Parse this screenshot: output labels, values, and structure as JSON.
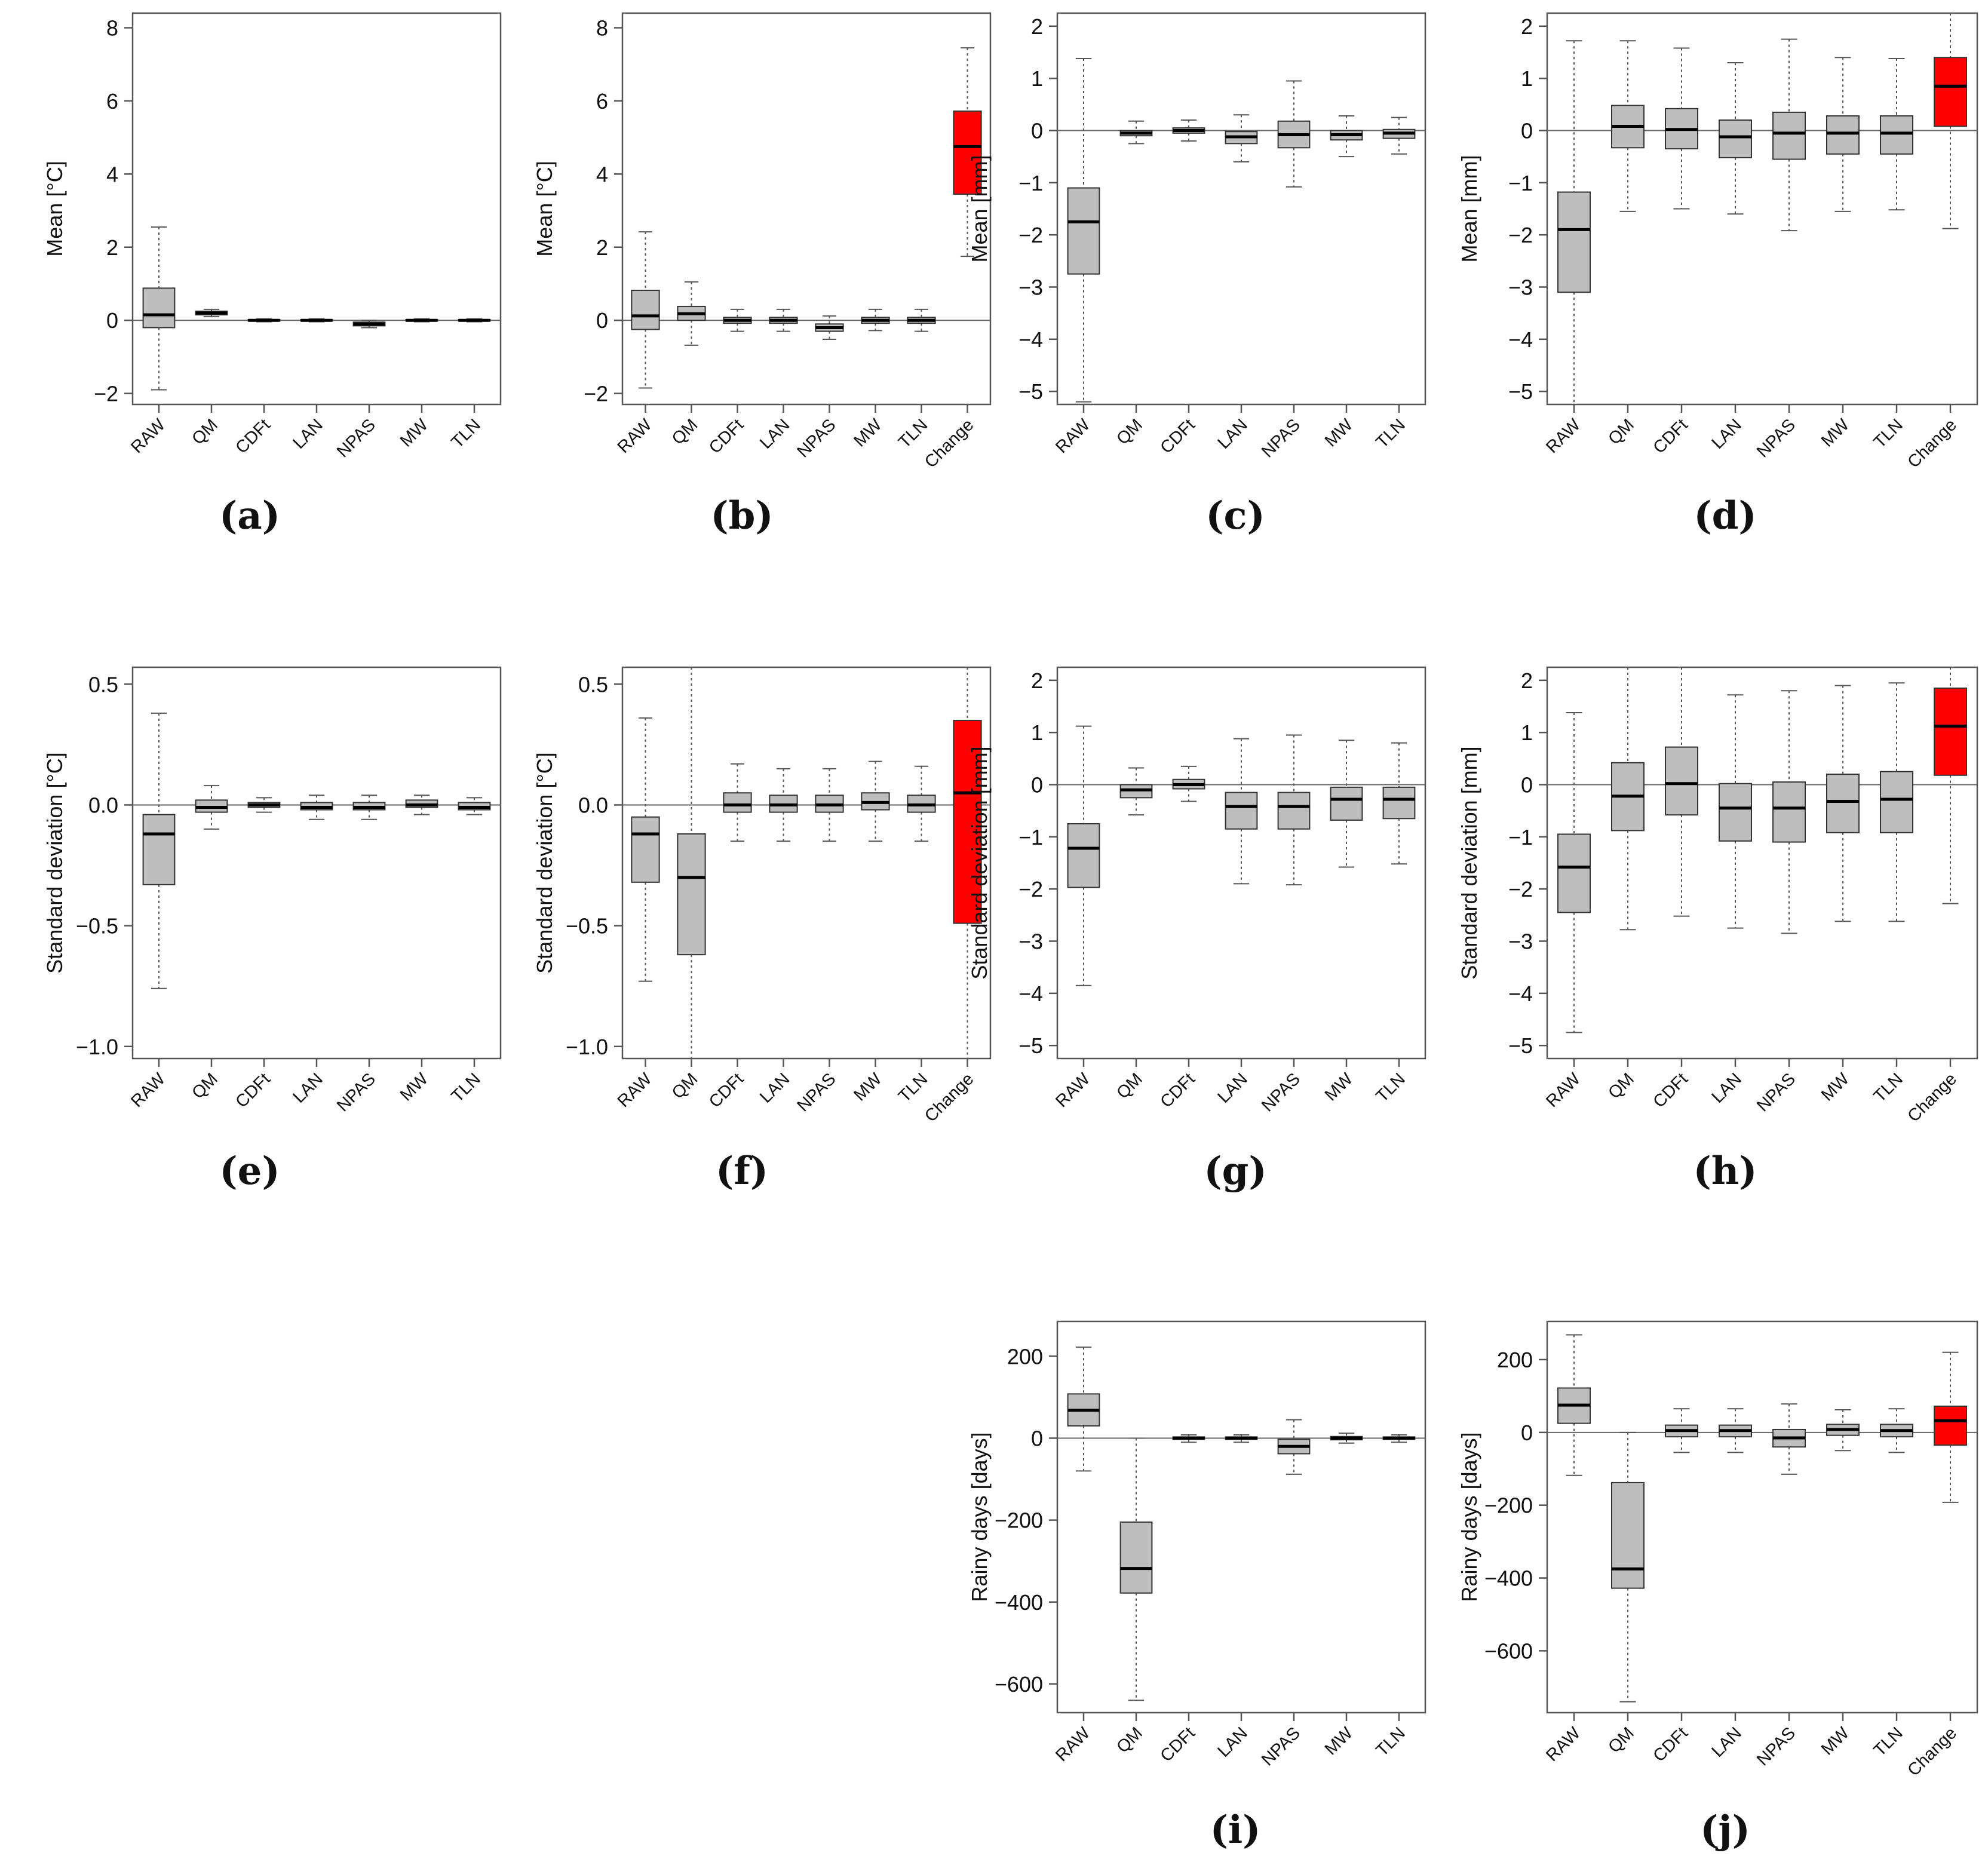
{
  "colors": {
    "box": "#bebebe",
    "change_box": "#ff0000",
    "median": "#000000",
    "frame": "#555555",
    "whisker": "#555555"
  },
  "chart_data": [
    {
      "id": "a",
      "panel_label": "(a)",
      "type": "box",
      "ylabel": "Mean [°C]",
      "ylim": [
        -2.3,
        8.4
      ],
      "yticks": [
        -2,
        0,
        2,
        4,
        6,
        8
      ],
      "ytick_labels": [
        "−2",
        "0",
        "2",
        "4",
        "6",
        "8"
      ],
      "categories": [
        "RAW",
        "QM",
        "CDFt",
        "LAN",
        "NPAS",
        "MW",
        "TLN"
      ],
      "boxes": [
        {
          "min": -1.9,
          "q1": -0.2,
          "median": 0.15,
          "q3": 0.88,
          "max": 2.55,
          "highlight": false
        },
        {
          "min": 0.1,
          "q1": 0.15,
          "median": 0.2,
          "q3": 0.25,
          "max": 0.3,
          "highlight": false
        },
        {
          "min": -0.04,
          "q1": -0.02,
          "median": 0.0,
          "q3": 0.02,
          "max": 0.04,
          "highlight": false
        },
        {
          "min": -0.04,
          "q1": -0.02,
          "median": 0.0,
          "q3": 0.02,
          "max": 0.04,
          "highlight": false
        },
        {
          "min": -0.2,
          "q1": -0.15,
          "median": -0.1,
          "q3": -0.05,
          "max": 0.0,
          "highlight": false
        },
        {
          "min": -0.04,
          "q1": -0.02,
          "median": 0.0,
          "q3": 0.02,
          "max": 0.04,
          "highlight": false
        },
        {
          "min": -0.04,
          "q1": -0.02,
          "median": 0.0,
          "q3": 0.02,
          "max": 0.04,
          "highlight": false
        }
      ]
    },
    {
      "id": "b",
      "panel_label": "(b)",
      "type": "box",
      "ylabel": "Mean [°C]",
      "ylim": [
        -2.3,
        8.4
      ],
      "yticks": [
        -2,
        0,
        2,
        4,
        6,
        8
      ],
      "ytick_labels": [
        "−2",
        "0",
        "2",
        "4",
        "6",
        "8"
      ],
      "categories": [
        "RAW",
        "QM",
        "CDFt",
        "LAN",
        "NPAS",
        "MW",
        "TLN",
        "Change"
      ],
      "boxes": [
        {
          "min": -1.85,
          "q1": -0.25,
          "median": 0.12,
          "q3": 0.82,
          "max": 2.42,
          "highlight": false
        },
        {
          "min": -0.68,
          "q1": 0.0,
          "median": 0.18,
          "q3": 0.38,
          "max": 1.05,
          "highlight": false
        },
        {
          "min": -0.3,
          "q1": -0.08,
          "median": 0.0,
          "q3": 0.08,
          "max": 0.3,
          "highlight": false
        },
        {
          "min": -0.3,
          "q1": -0.08,
          "median": 0.0,
          "q3": 0.08,
          "max": 0.3,
          "highlight": false
        },
        {
          "min": -0.52,
          "q1": -0.3,
          "median": -0.2,
          "q3": -0.1,
          "max": 0.12,
          "highlight": false
        },
        {
          "min": -0.28,
          "q1": -0.08,
          "median": 0.0,
          "q3": 0.08,
          "max": 0.3,
          "highlight": false
        },
        {
          "min": -0.3,
          "q1": -0.08,
          "median": 0.0,
          "q3": 0.08,
          "max": 0.3,
          "highlight": false
        },
        {
          "min": 1.75,
          "q1": 3.45,
          "median": 4.75,
          "q3": 5.72,
          "max": 7.45,
          "highlight": true
        }
      ]
    },
    {
      "id": "c",
      "panel_label": "(c)",
      "type": "box",
      "ylabel": "Mean [mm]",
      "ylim": [
        -5.25,
        2.25
      ],
      "yticks": [
        -5,
        -4,
        -3,
        -2,
        -1,
        0,
        1,
        2
      ],
      "ytick_labels": [
        "−5",
        "−4",
        "−3",
        "−2",
        "−1",
        "0",
        "1",
        "2"
      ],
      "categories": [
        "RAW",
        "QM",
        "CDFt",
        "LAN",
        "NPAS",
        "MW",
        "TLN"
      ],
      "boxes": [
        {
          "min": -5.2,
          "q1": -2.75,
          "median": -1.75,
          "q3": -1.1,
          "max": 1.38,
          "highlight": false
        },
        {
          "min": -0.25,
          "q1": -0.1,
          "median": -0.05,
          "q3": 0.0,
          "max": 0.18,
          "highlight": false
        },
        {
          "min": -0.2,
          "q1": -0.05,
          "median": 0.0,
          "q3": 0.05,
          "max": 0.2,
          "highlight": false
        },
        {
          "min": -0.6,
          "q1": -0.25,
          "median": -0.12,
          "q3": -0.02,
          "max": 0.3,
          "highlight": false
        },
        {
          "min": -1.08,
          "q1": -0.33,
          "median": -0.08,
          "q3": 0.18,
          "max": 0.95,
          "highlight": false
        },
        {
          "min": -0.5,
          "q1": -0.18,
          "median": -0.08,
          "q3": 0.0,
          "max": 0.28,
          "highlight": false
        },
        {
          "min": -0.45,
          "q1": -0.15,
          "median": -0.05,
          "q3": 0.02,
          "max": 0.25,
          "highlight": false
        }
      ]
    },
    {
      "id": "d",
      "panel_label": "(d)",
      "type": "box",
      "ylabel": "Mean [mm]",
      "ylim": [
        -5.25,
        2.25
      ],
      "yticks": [
        -5,
        -4,
        -3,
        -2,
        -1,
        0,
        1,
        2
      ],
      "ytick_labels": [
        "−5",
        "−4",
        "−3",
        "−2",
        "−1",
        "0",
        "1",
        "2"
      ],
      "categories": [
        "RAW",
        "QM",
        "CDFt",
        "LAN",
        "NPAS",
        "MW",
        "TLN",
        "Change"
      ],
      "boxes": [
        {
          "min": -5.25,
          "q1": -3.1,
          "median": -1.9,
          "q3": -1.18,
          "max": 1.72,
          "highlight": false
        },
        {
          "min": -1.55,
          "q1": -0.33,
          "median": 0.08,
          "q3": 0.48,
          "max": 1.72,
          "highlight": false
        },
        {
          "min": -1.5,
          "q1": -0.35,
          "median": 0.02,
          "q3": 0.42,
          "max": 1.58,
          "highlight": false
        },
        {
          "min": -1.6,
          "q1": -0.52,
          "median": -0.12,
          "q3": 0.2,
          "max": 1.3,
          "highlight": false
        },
        {
          "min": -1.92,
          "q1": -0.55,
          "median": -0.05,
          "q3": 0.35,
          "max": 1.75,
          "highlight": false
        },
        {
          "min": -1.55,
          "q1": -0.45,
          "median": -0.05,
          "q3": 0.28,
          "max": 1.4,
          "highlight": false
        },
        {
          "min": -1.52,
          "q1": -0.45,
          "median": -0.05,
          "q3": 0.28,
          "max": 1.38,
          "highlight": false
        },
        {
          "min": -1.88,
          "q1": 0.08,
          "median": 0.85,
          "q3": 1.4,
          "max": 2.25,
          "highlight": true
        }
      ]
    },
    {
      "id": "e",
      "panel_label": "(e)",
      "type": "box",
      "ylabel": "Standard deviation [°C]",
      "ylim": [
        -1.05,
        0.57
      ],
      "yticks": [
        -1.0,
        -0.5,
        0.0,
        0.5
      ],
      "ytick_labels": [
        "−1.0",
        "−0.5",
        "0.0",
        "0.5"
      ],
      "categories": [
        "RAW",
        "QM",
        "CDFt",
        "LAN",
        "NPAS",
        "MW",
        "TLN"
      ],
      "boxes": [
        {
          "min": -0.76,
          "q1": -0.33,
          "median": -0.12,
          "q3": -0.04,
          "max": 0.38,
          "highlight": false
        },
        {
          "min": -0.1,
          "q1": -0.03,
          "median": -0.01,
          "q3": 0.02,
          "max": 0.08,
          "highlight": false
        },
        {
          "min": -0.03,
          "q1": -0.01,
          "median": 0.0,
          "q3": 0.01,
          "max": 0.03,
          "highlight": false
        },
        {
          "min": -0.06,
          "q1": -0.02,
          "median": -0.01,
          "q3": 0.01,
          "max": 0.04,
          "highlight": false
        },
        {
          "min": -0.06,
          "q1": -0.02,
          "median": -0.01,
          "q3": 0.01,
          "max": 0.04,
          "highlight": false
        },
        {
          "min": -0.04,
          "q1": -0.01,
          "median": 0.0,
          "q3": 0.02,
          "max": 0.04,
          "highlight": false
        },
        {
          "min": -0.04,
          "q1": -0.02,
          "median": -0.01,
          "q3": 0.01,
          "max": 0.03,
          "highlight": false
        }
      ]
    },
    {
      "id": "f",
      "panel_label": "(f)",
      "type": "box",
      "ylabel": "Standard deviation [°C]",
      "ylim": [
        -1.05,
        0.57
      ],
      "yticks": [
        -1.0,
        -0.5,
        0.0,
        0.5
      ],
      "ytick_labels": [
        "−1.0",
        "−0.5",
        "0.0",
        "0.5"
      ],
      "categories": [
        "RAW",
        "QM",
        "CDFt",
        "LAN",
        "NPAS",
        "MW",
        "TLN",
        "Change"
      ],
      "boxes": [
        {
          "min": -0.73,
          "q1": -0.32,
          "median": -0.12,
          "q3": -0.05,
          "max": 0.36,
          "highlight": false
        },
        {
          "min": -1.05,
          "q1": -0.62,
          "median": -0.3,
          "q3": -0.12,
          "max": 0.57,
          "highlight": false
        },
        {
          "min": -0.15,
          "q1": -0.03,
          "median": 0.0,
          "q3": 0.05,
          "max": 0.17,
          "highlight": false
        },
        {
          "min": -0.15,
          "q1": -0.03,
          "median": 0.0,
          "q3": 0.04,
          "max": 0.15,
          "highlight": false
        },
        {
          "min": -0.15,
          "q1": -0.03,
          "median": 0.0,
          "q3": 0.04,
          "max": 0.15,
          "highlight": false
        },
        {
          "min": -0.15,
          "q1": -0.02,
          "median": 0.01,
          "q3": 0.05,
          "max": 0.18,
          "highlight": false
        },
        {
          "min": -0.15,
          "q1": -0.03,
          "median": 0.0,
          "q3": 0.04,
          "max": 0.16,
          "highlight": false
        },
        {
          "min": -1.05,
          "q1": -0.49,
          "median": 0.05,
          "q3": 0.35,
          "max": 0.57,
          "highlight": true
        }
      ]
    },
    {
      "id": "g",
      "panel_label": "(g)",
      "type": "box",
      "ylabel": "Standard deviation [mm]",
      "ylim": [
        -5.25,
        2.25
      ],
      "yticks": [
        -5,
        -4,
        -3,
        -2,
        -1,
        0,
        1,
        2
      ],
      "ytick_labels": [
        "−5",
        "−4",
        "−3",
        "−2",
        "−1",
        "0",
        "1",
        "2"
      ],
      "categories": [
        "RAW",
        "QM",
        "CDFt",
        "LAN",
        "NPAS",
        "MW",
        "TLN"
      ],
      "boxes": [
        {
          "min": -3.85,
          "q1": -1.97,
          "median": -1.22,
          "q3": -0.75,
          "max": 1.12,
          "highlight": false
        },
        {
          "min": -0.58,
          "q1": -0.25,
          "median": -0.1,
          "q3": 0.0,
          "max": 0.32,
          "highlight": false
        },
        {
          "min": -0.32,
          "q1": -0.08,
          "median": 0.0,
          "q3": 0.1,
          "max": 0.35,
          "highlight": false
        },
        {
          "min": -1.9,
          "q1": -0.85,
          "median": -0.42,
          "q3": -0.15,
          "max": 0.88,
          "highlight": false
        },
        {
          "min": -1.92,
          "q1": -0.85,
          "median": -0.42,
          "q3": -0.15,
          "max": 0.95,
          "highlight": false
        },
        {
          "min": -1.58,
          "q1": -0.68,
          "median": -0.28,
          "q3": -0.05,
          "max": 0.85,
          "highlight": false
        },
        {
          "min": -1.52,
          "q1": -0.65,
          "median": -0.28,
          "q3": -0.05,
          "max": 0.8,
          "highlight": false
        }
      ]
    },
    {
      "id": "h",
      "panel_label": "(h)",
      "type": "box",
      "ylabel": "Standard deviation [mm]",
      "ylim": [
        -5.25,
        2.25
      ],
      "yticks": [
        -5,
        -4,
        -3,
        -2,
        -1,
        0,
        1,
        2
      ],
      "ytick_labels": [
        "−5",
        "−4",
        "−3",
        "−2",
        "−1",
        "0",
        "1",
        "2"
      ],
      "categories": [
        "RAW",
        "QM",
        "CDFt",
        "LAN",
        "NPAS",
        "MW",
        "TLN",
        "Change"
      ],
      "boxes": [
        {
          "min": -4.75,
          "q1": -2.45,
          "median": -1.58,
          "q3": -0.95,
          "max": 1.38,
          "highlight": false
        },
        {
          "min": -2.78,
          "q1": -0.88,
          "median": -0.22,
          "q3": 0.42,
          "max": 2.25,
          "highlight": false
        },
        {
          "min": -2.52,
          "q1": -0.58,
          "median": 0.02,
          "q3": 0.72,
          "max": 2.25,
          "highlight": false
        },
        {
          "min": -2.75,
          "q1": -1.08,
          "median": -0.45,
          "q3": 0.02,
          "max": 1.72,
          "highlight": false
        },
        {
          "min": -2.85,
          "q1": -1.1,
          "median": -0.45,
          "q3": 0.05,
          "max": 1.8,
          "highlight": false
        },
        {
          "min": -2.62,
          "q1": -0.92,
          "median": -0.32,
          "q3": 0.2,
          "max": 1.9,
          "highlight": false
        },
        {
          "min": -2.62,
          "q1": -0.92,
          "median": -0.28,
          "q3": 0.25,
          "max": 1.95,
          "highlight": false
        },
        {
          "min": -2.28,
          "q1": 0.18,
          "median": 1.12,
          "q3": 1.85,
          "max": 2.25,
          "highlight": true
        }
      ]
    },
    {
      "id": "i",
      "panel_label": "(i)",
      "type": "box",
      "ylabel": "Rainy days [days]",
      "ylim": [
        -670,
        285
      ],
      "yticks": [
        -600,
        -400,
        -200,
        0,
        200
      ],
      "ytick_labels": [
        "−600",
        "−400",
        "−200",
        "0",
        "200"
      ],
      "categories": [
        "RAW",
        "QM",
        "CDFt",
        "LAN",
        "NPAS",
        "MW",
        "TLN"
      ],
      "boxes": [
        {
          "min": -80,
          "q1": 30,
          "median": 68,
          "q3": 108,
          "max": 222,
          "highlight": false
        },
        {
          "min": -640,
          "q1": -378,
          "median": -318,
          "q3": -205,
          "max": 0,
          "highlight": false
        },
        {
          "min": -10,
          "q1": -3,
          "median": 0,
          "q3": 3,
          "max": 8,
          "highlight": false
        },
        {
          "min": -10,
          "q1": -3,
          "median": 0,
          "q3": 3,
          "max": 8,
          "highlight": false
        },
        {
          "min": -88,
          "q1": -38,
          "median": -20,
          "q3": -3,
          "max": 45,
          "highlight": false
        },
        {
          "min": -12,
          "q1": -4,
          "median": 0,
          "q3": 4,
          "max": 12,
          "highlight": false
        },
        {
          "min": -10,
          "q1": -3,
          "median": 0,
          "q3": 3,
          "max": 8,
          "highlight": false
        }
      ]
    },
    {
      "id": "j",
      "panel_label": "(j)",
      "type": "box",
      "ylabel": "Rainy days [days]",
      "ylim": [
        -770,
        305
      ],
      "yticks": [
        -600,
        -400,
        -200,
        0,
        200
      ],
      "ytick_labels": [
        "−600",
        "−400",
        "−200",
        "0",
        "200"
      ],
      "categories": [
        "RAW",
        "QM",
        "CDFt",
        "LAN",
        "NPAS",
        "MW",
        "TLN",
        "Change"
      ],
      "boxes": [
        {
          "min": -118,
          "q1": 25,
          "median": 75,
          "q3": 122,
          "max": 268,
          "highlight": false
        },
        {
          "min": -740,
          "q1": -428,
          "median": -375,
          "q3": -138,
          "max": 0,
          "highlight": false
        },
        {
          "min": -55,
          "q1": -12,
          "median": 5,
          "q3": 20,
          "max": 65,
          "highlight": false
        },
        {
          "min": -55,
          "q1": -12,
          "median": 5,
          "q3": 20,
          "max": 65,
          "highlight": false
        },
        {
          "min": -115,
          "q1": -40,
          "median": -15,
          "q3": 8,
          "max": 78,
          "highlight": false
        },
        {
          "min": -50,
          "q1": -8,
          "median": 8,
          "q3": 22,
          "max": 62,
          "highlight": false
        },
        {
          "min": -55,
          "q1": -12,
          "median": 5,
          "q3": 22,
          "max": 65,
          "highlight": false
        },
        {
          "min": -192,
          "q1": -35,
          "median": 32,
          "q3": 72,
          "max": 220,
          "highlight": true
        }
      ]
    }
  ]
}
